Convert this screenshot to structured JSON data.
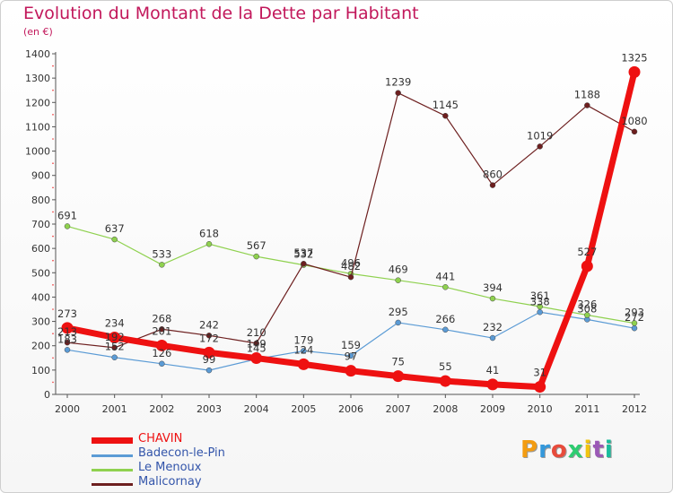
{
  "header": {
    "title": "Evolution du Montant de la Dette par Habitant",
    "unit": "(en €)"
  },
  "chart_data": {
    "type": "line",
    "title": "Evolution du Montant de la Dette par Habitant",
    "ylabel": "(en €)",
    "ylim": [
      0,
      1400
    ],
    "yticks": [
      0,
      100,
      200,
      300,
      400,
      500,
      600,
      700,
      800,
      900,
      1000,
      1100,
      1200,
      1300,
      1400
    ],
    "x": [
      "2000",
      "2001",
      "2002",
      "2003",
      "2004",
      "2005",
      "2006",
      "2007",
      "2008",
      "2009",
      "2010",
      "2011",
      "2012"
    ],
    "grid": false,
    "legend_position": "bottom-left",
    "series": [
      {
        "name": "Badecon-le-Pin",
        "color": "#5b9bd5",
        "values": [
          183,
          152,
          126,
          99,
          145,
          179,
          159,
          295,
          266,
          232,
          338,
          308,
          272
        ]
      },
      {
        "name": "Le Menoux",
        "color": "#8fd14f",
        "values": [
          691,
          637,
          533,
          618,
          567,
          532,
          496,
          469,
          441,
          394,
          361,
          326,
          293
        ]
      },
      {
        "name": "Malicornay",
        "color": "#6d1f1f",
        "values": [
          213,
          192,
          268,
          242,
          210,
          537,
          482,
          1239,
          1145,
          860,
          1019,
          1188,
          1080
        ]
      },
      {
        "name": "CHAVIN",
        "color": "#ee1111",
        "values": [
          273,
          234,
          201,
          172,
          149,
          124,
          97,
          75,
          55,
          41,
          31,
          527,
          1325
        ]
      }
    ]
  },
  "legend": {
    "items": [
      {
        "label": "CHAVIN",
        "color": "#ee1111"
      },
      {
        "label": "Badecon-le-Pin",
        "color": "#5b9bd5"
      },
      {
        "label": "Le Menoux",
        "color": "#8fd14f"
      },
      {
        "label": "Malicornay",
        "color": "#6d1f1f"
      }
    ]
  },
  "logo": {
    "text": "Proxiti",
    "colors": [
      "#f39c12",
      "#3498db",
      "#e74c3c",
      "#2ecc71",
      "#f1c40f",
      "#9b59b6",
      "#1abc9c"
    ]
  }
}
